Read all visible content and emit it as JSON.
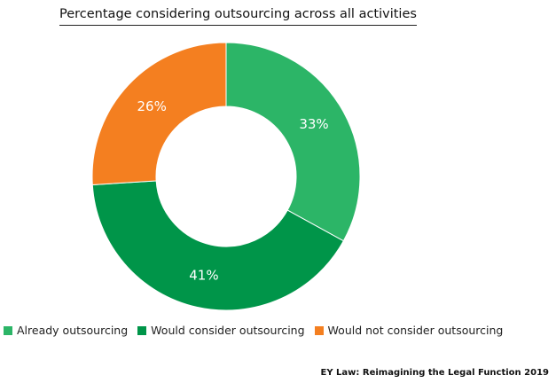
{
  "chart_data": {
    "type": "pie",
    "variant": "donut",
    "title": "Percentage considering outsourcing across all activities",
    "categories": [
      "Already outsourcing",
      "Would consider outsourcing",
      "Would not consider outsourcing"
    ],
    "values": [
      33,
      41,
      26
    ],
    "value_labels": [
      "33%",
      "41%",
      "26%"
    ],
    "colors": [
      "#2cb567",
      "#009549",
      "#f47f20"
    ],
    "legend_position": "bottom-left"
  },
  "source": "EY Law: Reimagining the Legal Function 2019"
}
